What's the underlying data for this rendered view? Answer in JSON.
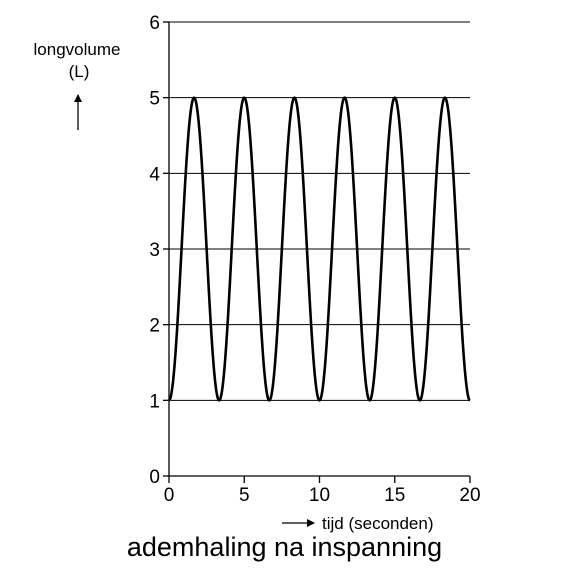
{
  "chart_data": {
    "type": "line",
    "title": "",
    "ylabel_line1": "longvolume",
    "ylabel_line2": "(L)",
    "xlabel": "tijd (seconden)",
    "caption": "ademhaling na inspanning",
    "xlim": [
      0,
      20
    ],
    "ylim": [
      0,
      6
    ],
    "xticks": [
      0,
      5,
      10,
      15,
      20
    ],
    "yticks": [
      0,
      1,
      2,
      3,
      4,
      5,
      6
    ],
    "grid": "horizontal",
    "gridlines_y": [
      1,
      2,
      3,
      4,
      5,
      6
    ],
    "waveform": {
      "min": 1,
      "max": 5,
      "period": 3.3333,
      "cycles": 6,
      "start": 0,
      "end": 20,
      "starts_at": "min"
    },
    "series": [
      {
        "x": [
          0,
          1.6667,
          3.3333,
          5,
          6.6667,
          8.3333,
          10,
          11.6667,
          13.3333,
          15,
          16.6667,
          18.3333,
          20
        ],
        "y": [
          1,
          5,
          1,
          5,
          1,
          5,
          1,
          5,
          1,
          5,
          1,
          5,
          1
        ]
      }
    ]
  }
}
